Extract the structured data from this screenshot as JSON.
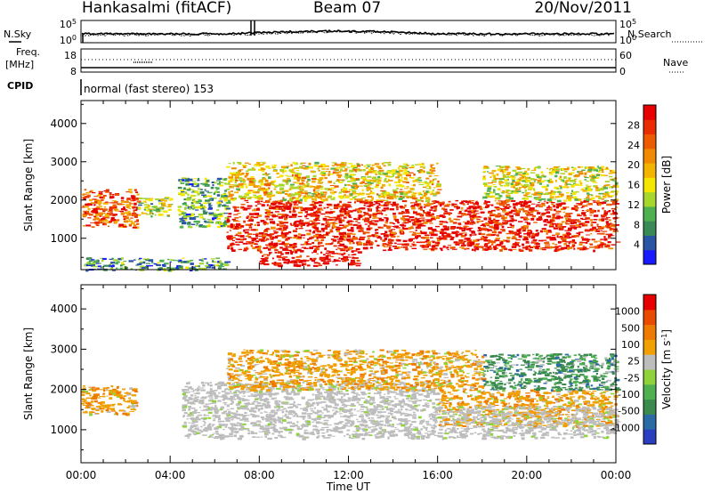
{
  "header": {
    "station": "Hankasalmi (fitACF)",
    "beam": "Beam 07",
    "date": "20/Nov/2011"
  },
  "aux_panels": {
    "noise": {
      "left_label": "N.Sky",
      "right_label": "N.Search",
      "left_ticks": [
        "10^5",
        "10^0"
      ],
      "right_ticks": [
        "10^5",
        "10^0"
      ]
    },
    "freq": {
      "left_label": "Freq.",
      "left_unit": "[MHz]",
      "right_label": "Nave",
      "left_ticks": [
        "18",
        "8"
      ],
      "right_ticks": [
        "60",
        "0"
      ]
    },
    "cpid": {
      "label": "CPID",
      "text": "normal (fast stereo) 153"
    }
  },
  "chart_data": [
    {
      "type": "heatmap",
      "panel": "power",
      "ylabel": "Slant Range [km]",
      "xlabel": "",
      "xlim": [
        0,
        24
      ],
      "ylim": [
        180,
        4600
      ],
      "yticks": [
        1000,
        2000,
        3000,
        4000
      ],
      "colorbar": {
        "label": "Power [dB]",
        "ticks": [
          "28",
          "24",
          "20",
          "16",
          "12",
          "8",
          "4"
        ],
        "colors": [
          "#1a1aff",
          "#2a55a5",
          "#3a8a55",
          "#4fb04f",
          "#a6d72a",
          "#f3e600",
          "#f2b400",
          "#f08a00",
          "#ee5a00",
          "#ea2d00",
          "#e60000"
        ]
      },
      "echo_regions": [
        {
          "t_start": 0.0,
          "t_end": 2.5,
          "range_min": 1300,
          "range_max": 2300,
          "level": 0.8
        },
        {
          "t_start": 2.5,
          "t_end": 4.0,
          "range_min": 1600,
          "range_max": 2100,
          "level": 0.4
        },
        {
          "t_start": 4.3,
          "t_end": 6.5,
          "range_min": 1300,
          "range_max": 2600,
          "level": 0.3
        },
        {
          "t_start": 0.0,
          "t_end": 6.5,
          "range_min": 180,
          "range_max": 500,
          "level": 0.25
        },
        {
          "t_start": 6.5,
          "t_end": 24.0,
          "range_min": 700,
          "range_max": 2000,
          "level": 0.9
        },
        {
          "t_start": 6.5,
          "t_end": 16.0,
          "range_min": 2000,
          "range_max": 3000,
          "level": 0.55
        },
        {
          "t_start": 8.0,
          "t_end": 12.5,
          "range_min": 300,
          "range_max": 700,
          "level": 1.0
        },
        {
          "t_start": 18.0,
          "t_end": 24.0,
          "range_min": 2000,
          "range_max": 2900,
          "level": 0.5
        }
      ]
    },
    {
      "type": "heatmap",
      "panel": "velocity",
      "ylabel": "Slant Range [km]",
      "xlabel": "Time UT",
      "xlim": [
        0,
        24
      ],
      "ylim": [
        180,
        4600
      ],
      "yticks": [
        1000,
        2000,
        3000,
        4000
      ],
      "xticks": [
        "00:00",
        "04:00",
        "08:00",
        "12:00",
        "16:00",
        "20:00",
        "00:00"
      ],
      "colorbar": {
        "label": "Velocity [m s^-1]",
        "ticks": [
          "1000",
          "500",
          "100",
          "25",
          "-25",
          "-100",
          "-500",
          "-1000"
        ],
        "colors": [
          "#2a3fbf",
          "#2a6aa5",
          "#3b8a4e",
          "#4fb04f",
          "#8fd33a",
          "#bdbdbd",
          "#f0a000",
          "#ef7a00",
          "#ea4a00",
          "#e60000"
        ]
      },
      "echo_regions": [
        {
          "t_start": 0.0,
          "t_end": 2.5,
          "range_min": 1400,
          "range_max": 2100,
          "class": "receding"
        },
        {
          "t_start": 4.5,
          "t_end": 16.0,
          "range_min": 800,
          "range_max": 2200,
          "class": "ground"
        },
        {
          "t_start": 6.5,
          "t_end": 18.0,
          "range_min": 2000,
          "range_max": 3000,
          "class": "receding"
        },
        {
          "t_start": 16.0,
          "t_end": 24.0,
          "range_min": 1100,
          "range_max": 2000,
          "class": "receding"
        },
        {
          "t_start": 18.0,
          "t_end": 24.0,
          "range_min": 2000,
          "range_max": 2900,
          "class": "approaching"
        },
        {
          "t_start": 16.0,
          "t_end": 24.0,
          "range_min": 800,
          "range_max": 1600,
          "class": "ground"
        }
      ]
    }
  ]
}
